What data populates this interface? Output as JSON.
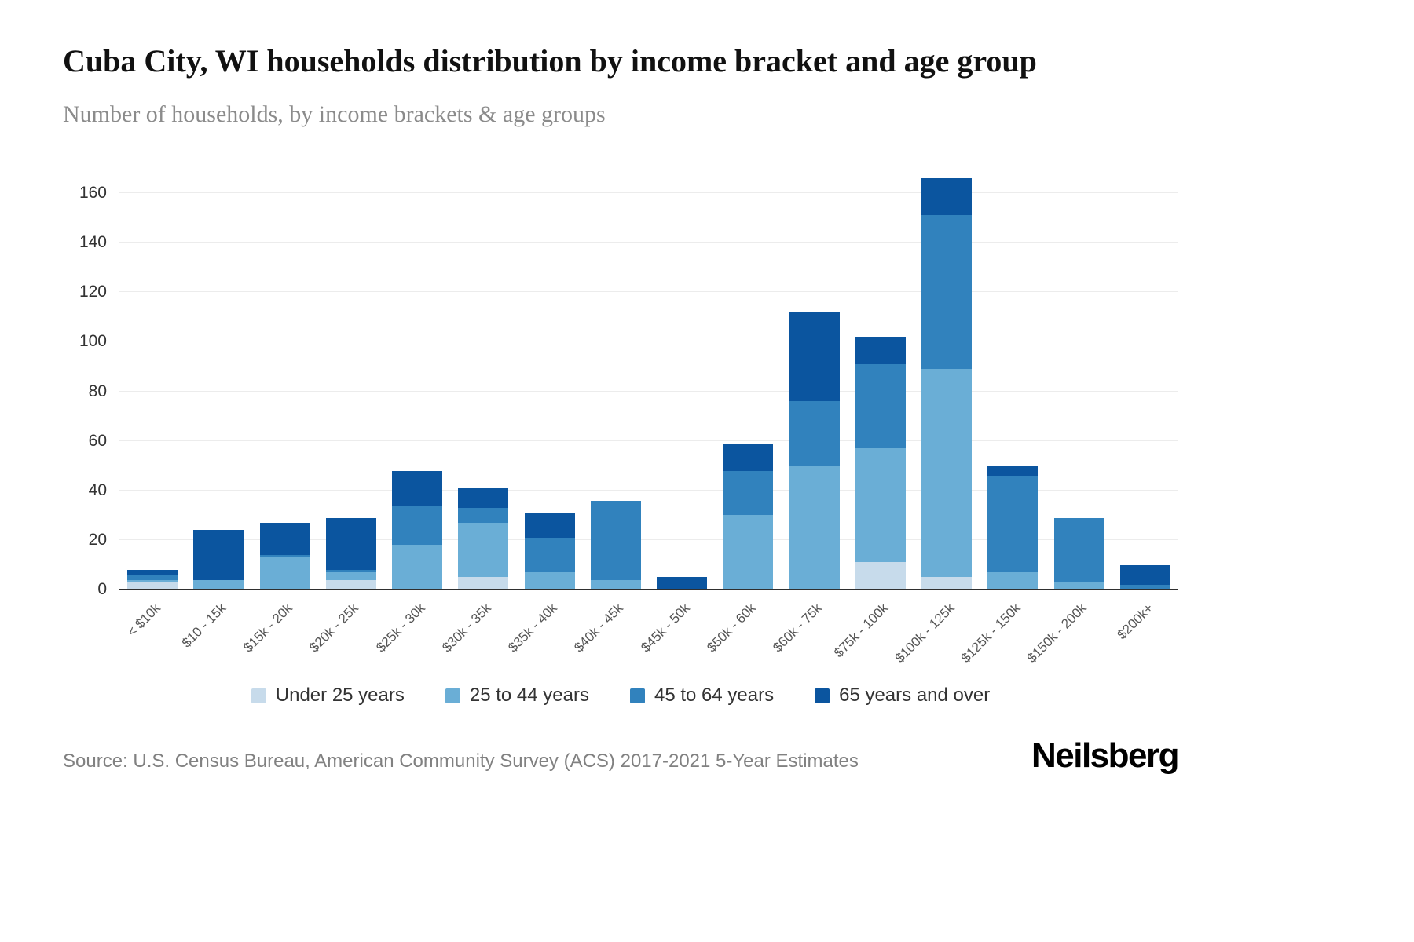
{
  "page": {
    "source": "Source: U.S. Census Bureau, American Community Survey (ACS) 2017-2021 5-Year Estimates",
    "brand": "Neilsberg"
  },
  "chart_data": {
    "type": "bar",
    "stacked": true,
    "title": "Cuba City, WI households distribution by income bracket and age group",
    "subtitle": "Number of households, by income brackets & age groups",
    "xlabel": "",
    "ylabel": "",
    "ylim": [
      0,
      160
    ],
    "ytick_step": 20,
    "grid": "horizontal",
    "legend_position": "bottom",
    "categories": [
      "< $10k",
      "$10 - 15k",
      "$15k - 20k",
      "$20k - 25k",
      "$25k - 30k",
      "$30k - 35k",
      "$35k - 40k",
      "$40k - 45k",
      "$45k - 50k",
      "$50k - 60k",
      "$60k - 75k",
      "$75k - 100k",
      "$100k - 125k",
      "$125k - 150k",
      "$150k - 200k",
      "$200k+"
    ],
    "series": [
      {
        "name": "Under 25 years",
        "color": "#c7dbeb",
        "values": [
          3,
          0,
          0,
          4,
          0,
          5,
          0,
          0,
          0,
          0,
          0,
          11,
          5,
          0,
          0,
          0
        ]
      },
      {
        "name": "25 to 44 years",
        "color": "#6aaed6",
        "values": [
          1,
          4,
          13,
          3,
          18,
          22,
          7,
          4,
          0,
          30,
          50,
          46,
          84,
          7,
          3,
          0
        ]
      },
      {
        "name": "45 to 64 years",
        "color": "#3182bd",
        "values": [
          2,
          0,
          1,
          1,
          16,
          6,
          14,
          32,
          0,
          18,
          26,
          34,
          62,
          39,
          26,
          2
        ]
      },
      {
        "name": "65 years and over",
        "color": "#0b559f",
        "values": [
          2,
          20,
          13,
          21,
          14,
          8,
          10,
          0,
          5,
          11,
          36,
          11,
          15,
          4,
          0,
          8
        ]
      }
    ],
    "totals": [
      8,
      24,
      27,
      29,
      48,
      41,
      31,
      36,
      5,
      59,
      112,
      102,
      166,
      50,
      29,
      10
    ]
  }
}
